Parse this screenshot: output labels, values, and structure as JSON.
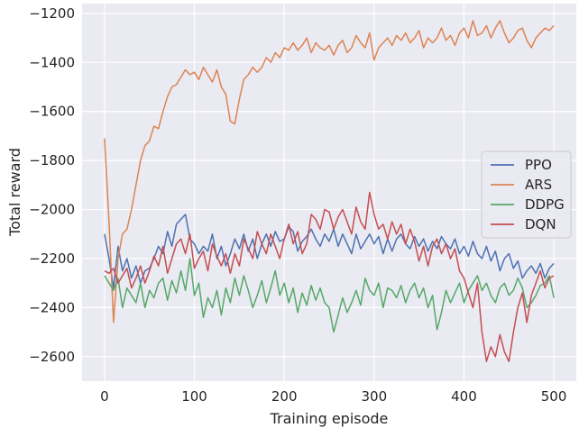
{
  "chart_data": {
    "type": "line",
    "title": "",
    "xlabel": "Training episode",
    "ylabel": "Total reward",
    "xlim": [
      -25,
      525
    ],
    "ylim": [
      -2700,
      -1160
    ],
    "xticks": [
      0,
      100,
      200,
      300,
      400,
      500
    ],
    "yticks": [
      -2600,
      -2400,
      -2200,
      -2000,
      -1800,
      -1600,
      -1400,
      -1200
    ],
    "grid": true,
    "legend_position": "center-right",
    "series": [
      {
        "name": "PPO",
        "color": "#4c72b0",
        "x": [
          0,
          5,
          10,
          15,
          20,
          25,
          30,
          35,
          40,
          45,
          50,
          55,
          60,
          65,
          70,
          75,
          80,
          85,
          90,
          95,
          100,
          105,
          110,
          115,
          120,
          125,
          130,
          135,
          140,
          145,
          150,
          155,
          160,
          165,
          170,
          175,
          180,
          185,
          190,
          195,
          200,
          205,
          210,
          215,
          220,
          225,
          230,
          235,
          240,
          245,
          250,
          255,
          260,
          265,
          270,
          275,
          280,
          285,
          290,
          295,
          300,
          305,
          310,
          315,
          320,
          325,
          330,
          335,
          340,
          345,
          350,
          355,
          360,
          365,
          370,
          375,
          380,
          385,
          390,
          395,
          400,
          405,
          410,
          415,
          420,
          425,
          430,
          435,
          440,
          445,
          450,
          455,
          460,
          465,
          470,
          475,
          480,
          485,
          490,
          495,
          500
        ],
        "y": [
          -2100,
          -2200,
          -2320,
          -2150,
          -2250,
          -2200,
          -2280,
          -2230,
          -2300,
          -2250,
          -2240,
          -2200,
          -2150,
          -2180,
          -2090,
          -2150,
          -2060,
          -2040,
          -2020,
          -2120,
          -2140,
          -2180,
          -2150,
          -2170,
          -2100,
          -2200,
          -2150,
          -2230,
          -2180,
          -2120,
          -2160,
          -2100,
          -2170,
          -2120,
          -2200,
          -2140,
          -2100,
          -2150,
          -2090,
          -2130,
          -2120,
          -2070,
          -2090,
          -2170,
          -2130,
          -2110,
          -2080,
          -2120,
          -2150,
          -2100,
          -2130,
          -2080,
          -2150,
          -2100,
          -2140,
          -2180,
          -2100,
          -2160,
          -2130,
          -2100,
          -2140,
          -2110,
          -2180,
          -2120,
          -2170,
          -2120,
          -2100,
          -2140,
          -2160,
          -2110,
          -2150,
          -2120,
          -2170,
          -2130,
          -2160,
          -2110,
          -2140,
          -2160,
          -2120,
          -2180,
          -2150,
          -2190,
          -2130,
          -2180,
          -2200,
          -2150,
          -2210,
          -2170,
          -2250,
          -2200,
          -2180,
          -2240,
          -2210,
          -2280,
          -2250,
          -2230,
          -2260,
          -2220,
          -2280,
          -2240,
          -2220
        ]
      },
      {
        "name": "ARS",
        "color": "#dd8452",
        "x": [
          0,
          5,
          10,
          15,
          20,
          25,
          30,
          35,
          40,
          45,
          50,
          55,
          60,
          65,
          70,
          75,
          80,
          85,
          90,
          95,
          100,
          105,
          110,
          115,
          120,
          125,
          130,
          135,
          140,
          145,
          150,
          155,
          160,
          165,
          170,
          175,
          180,
          185,
          190,
          195,
          200,
          205,
          210,
          215,
          220,
          225,
          230,
          235,
          240,
          245,
          250,
          255,
          260,
          265,
          270,
          275,
          280,
          285,
          290,
          295,
          300,
          305,
          310,
          315,
          320,
          325,
          330,
          335,
          340,
          345,
          350,
          355,
          360,
          365,
          370,
          375,
          380,
          385,
          390,
          395,
          400,
          405,
          410,
          415,
          420,
          425,
          430,
          435,
          440,
          445,
          450,
          455,
          460,
          465,
          470,
          475,
          480,
          485,
          490,
          495,
          500
        ],
        "y": [
          -1710,
          -2050,
          -2460,
          -2200,
          -2100,
          -2080,
          -2000,
          -1900,
          -1800,
          -1740,
          -1720,
          -1660,
          -1670,
          -1600,
          -1540,
          -1500,
          -1490,
          -1460,
          -1430,
          -1450,
          -1440,
          -1470,
          -1420,
          -1450,
          -1480,
          -1430,
          -1500,
          -1530,
          -1640,
          -1650,
          -1550,
          -1470,
          -1450,
          -1420,
          -1440,
          -1420,
          -1380,
          -1400,
          -1360,
          -1380,
          -1340,
          -1350,
          -1320,
          -1350,
          -1330,
          -1300,
          -1360,
          -1320,
          -1340,
          -1350,
          -1330,
          -1370,
          -1330,
          -1310,
          -1360,
          -1340,
          -1290,
          -1320,
          -1340,
          -1280,
          -1390,
          -1340,
          -1320,
          -1300,
          -1330,
          -1290,
          -1310,
          -1280,
          -1320,
          -1300,
          -1270,
          -1340,
          -1300,
          -1320,
          -1300,
          -1260,
          -1310,
          -1290,
          -1330,
          -1280,
          -1260,
          -1300,
          -1230,
          -1290,
          -1280,
          -1250,
          -1300,
          -1260,
          -1230,
          -1280,
          -1320,
          -1300,
          -1270,
          -1260,
          -1310,
          -1340,
          -1300,
          -1280,
          -1260,
          -1270,
          -1250
        ]
      },
      {
        "name": "DDPG",
        "color": "#55a868",
        "x": [
          0,
          5,
          10,
          15,
          20,
          25,
          30,
          35,
          40,
          45,
          50,
          55,
          60,
          65,
          70,
          75,
          80,
          85,
          90,
          95,
          100,
          105,
          110,
          115,
          120,
          125,
          130,
          135,
          140,
          145,
          150,
          155,
          160,
          165,
          170,
          175,
          180,
          185,
          190,
          195,
          200,
          205,
          210,
          215,
          220,
          225,
          230,
          235,
          240,
          245,
          250,
          255,
          260,
          265,
          270,
          275,
          280,
          285,
          290,
          295,
          300,
          305,
          310,
          315,
          320,
          325,
          330,
          335,
          340,
          345,
          350,
          355,
          360,
          365,
          370,
          375,
          380,
          385,
          390,
          395,
          400,
          405,
          410,
          415,
          420,
          425,
          430,
          435,
          440,
          445,
          450,
          455,
          460,
          465,
          470,
          475,
          480,
          485,
          490,
          495,
          500
        ],
        "y": [
          -2270,
          -2300,
          -2330,
          -2280,
          -2400,
          -2320,
          -2350,
          -2380,
          -2300,
          -2400,
          -2330,
          -2360,
          -2300,
          -2280,
          -2370,
          -2290,
          -2340,
          -2250,
          -2330,
          -2200,
          -2350,
          -2300,
          -2440,
          -2360,
          -2400,
          -2330,
          -2430,
          -2320,
          -2380,
          -2280,
          -2350,
          -2270,
          -2330,
          -2400,
          -2350,
          -2290,
          -2380,
          -2320,
          -2250,
          -2350,
          -2300,
          -2380,
          -2320,
          -2420,
          -2340,
          -2390,
          -2310,
          -2370,
          -2320,
          -2380,
          -2400,
          -2500,
          -2430,
          -2360,
          -2420,
          -2380,
          -2330,
          -2390,
          -2280,
          -2330,
          -2350,
          -2300,
          -2400,
          -2320,
          -2330,
          -2360,
          -2310,
          -2380,
          -2330,
          -2300,
          -2360,
          -2320,
          -2400,
          -2350,
          -2490,
          -2420,
          -2330,
          -2380,
          -2340,
          -2300,
          -2380,
          -2330,
          -2300,
          -2270,
          -2330,
          -2300,
          -2350,
          -2380,
          -2320,
          -2300,
          -2350,
          -2330,
          -2280,
          -2320,
          -2400,
          -2380,
          -2350,
          -2310,
          -2300,
          -2270,
          -2360
        ]
      },
      {
        "name": "DQN",
        "color": "#c44e52",
        "x": [
          0,
          5,
          10,
          15,
          20,
          25,
          30,
          35,
          40,
          45,
          50,
          55,
          60,
          65,
          70,
          75,
          80,
          85,
          90,
          95,
          100,
          105,
          110,
          115,
          120,
          125,
          130,
          135,
          140,
          145,
          150,
          155,
          160,
          165,
          170,
          175,
          180,
          185,
          190,
          195,
          200,
          205,
          210,
          215,
          220,
          225,
          230,
          235,
          240,
          245,
          250,
          255,
          260,
          265,
          270,
          275,
          280,
          285,
          290,
          295,
          300,
          305,
          310,
          315,
          320,
          325,
          330,
          335,
          340,
          345,
          350,
          355,
          360,
          365,
          370,
          375,
          380,
          385,
          390,
          395,
          400,
          405,
          410,
          415,
          420,
          425,
          430,
          435,
          440,
          445,
          450,
          455,
          460,
          465,
          470,
          475,
          480,
          485,
          490,
          495,
          500
        ],
        "y": [
          -2250,
          -2260,
          -2240,
          -2300,
          -2270,
          -2240,
          -2320,
          -2280,
          -2230,
          -2300,
          -2250,
          -2190,
          -2230,
          -2150,
          -2260,
          -2200,
          -2140,
          -2120,
          -2180,
          -2100,
          -2240,
          -2200,
          -2170,
          -2250,
          -2140,
          -2190,
          -2230,
          -2180,
          -2260,
          -2180,
          -2230,
          -2120,
          -2160,
          -2200,
          -2090,
          -2140,
          -2180,
          -2100,
          -2150,
          -2200,
          -2120,
          -2060,
          -2140,
          -2090,
          -2180,
          -2140,
          -2020,
          -2040,
          -2080,
          -2000,
          -2010,
          -2080,
          -2030,
          -2000,
          -2050,
          -2100,
          -1990,
          -2050,
          -2080,
          -1930,
          -2020,
          -2080,
          -2060,
          -2120,
          -2050,
          -2100,
          -2060,
          -2140,
          -2080,
          -2130,
          -2210,
          -2150,
          -2230,
          -2150,
          -2120,
          -2180,
          -2140,
          -2200,
          -2160,
          -2250,
          -2280,
          -2340,
          -2400,
          -2300,
          -2500,
          -2620,
          -2560,
          -2600,
          -2510,
          -2580,
          -2620,
          -2500,
          -2400,
          -2340,
          -2460,
          -2350,
          -2300,
          -2250,
          -2320,
          -2280,
          -2270
        ]
      }
    ]
  }
}
